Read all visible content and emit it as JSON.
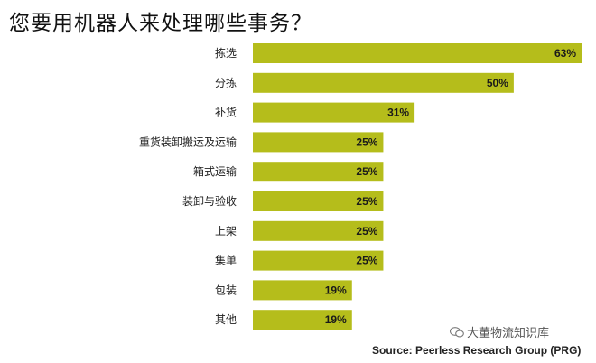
{
  "title": "您要用机器人来处理哪些事务？",
  "watermark": "大董物流知识库",
  "source": "Source: Peerless Research Group (PRG)",
  "colors": {
    "bar": "#b5bd1b",
    "text": "#222222"
  },
  "chart_data": {
    "type": "bar",
    "orientation": "horizontal",
    "title": "您要用机器人来处理哪些事务？",
    "categories": [
      "拣选",
      "分拣",
      "补货",
      "重货装卸搬运及运输",
      "箱式运输",
      "装卸与验收",
      "上架",
      "集单",
      "包装",
      "其他"
    ],
    "values": [
      63,
      50,
      31,
      25,
      25,
      25,
      25,
      25,
      19,
      19
    ],
    "value_labels": [
      "63%",
      "50%",
      "31%",
      "25%",
      "25%",
      "25%",
      "25%",
      "25%",
      "19%",
      "19%"
    ],
    "unit": "%",
    "xlim": [
      0,
      63
    ],
    "grid": false,
    "legend": "none"
  }
}
